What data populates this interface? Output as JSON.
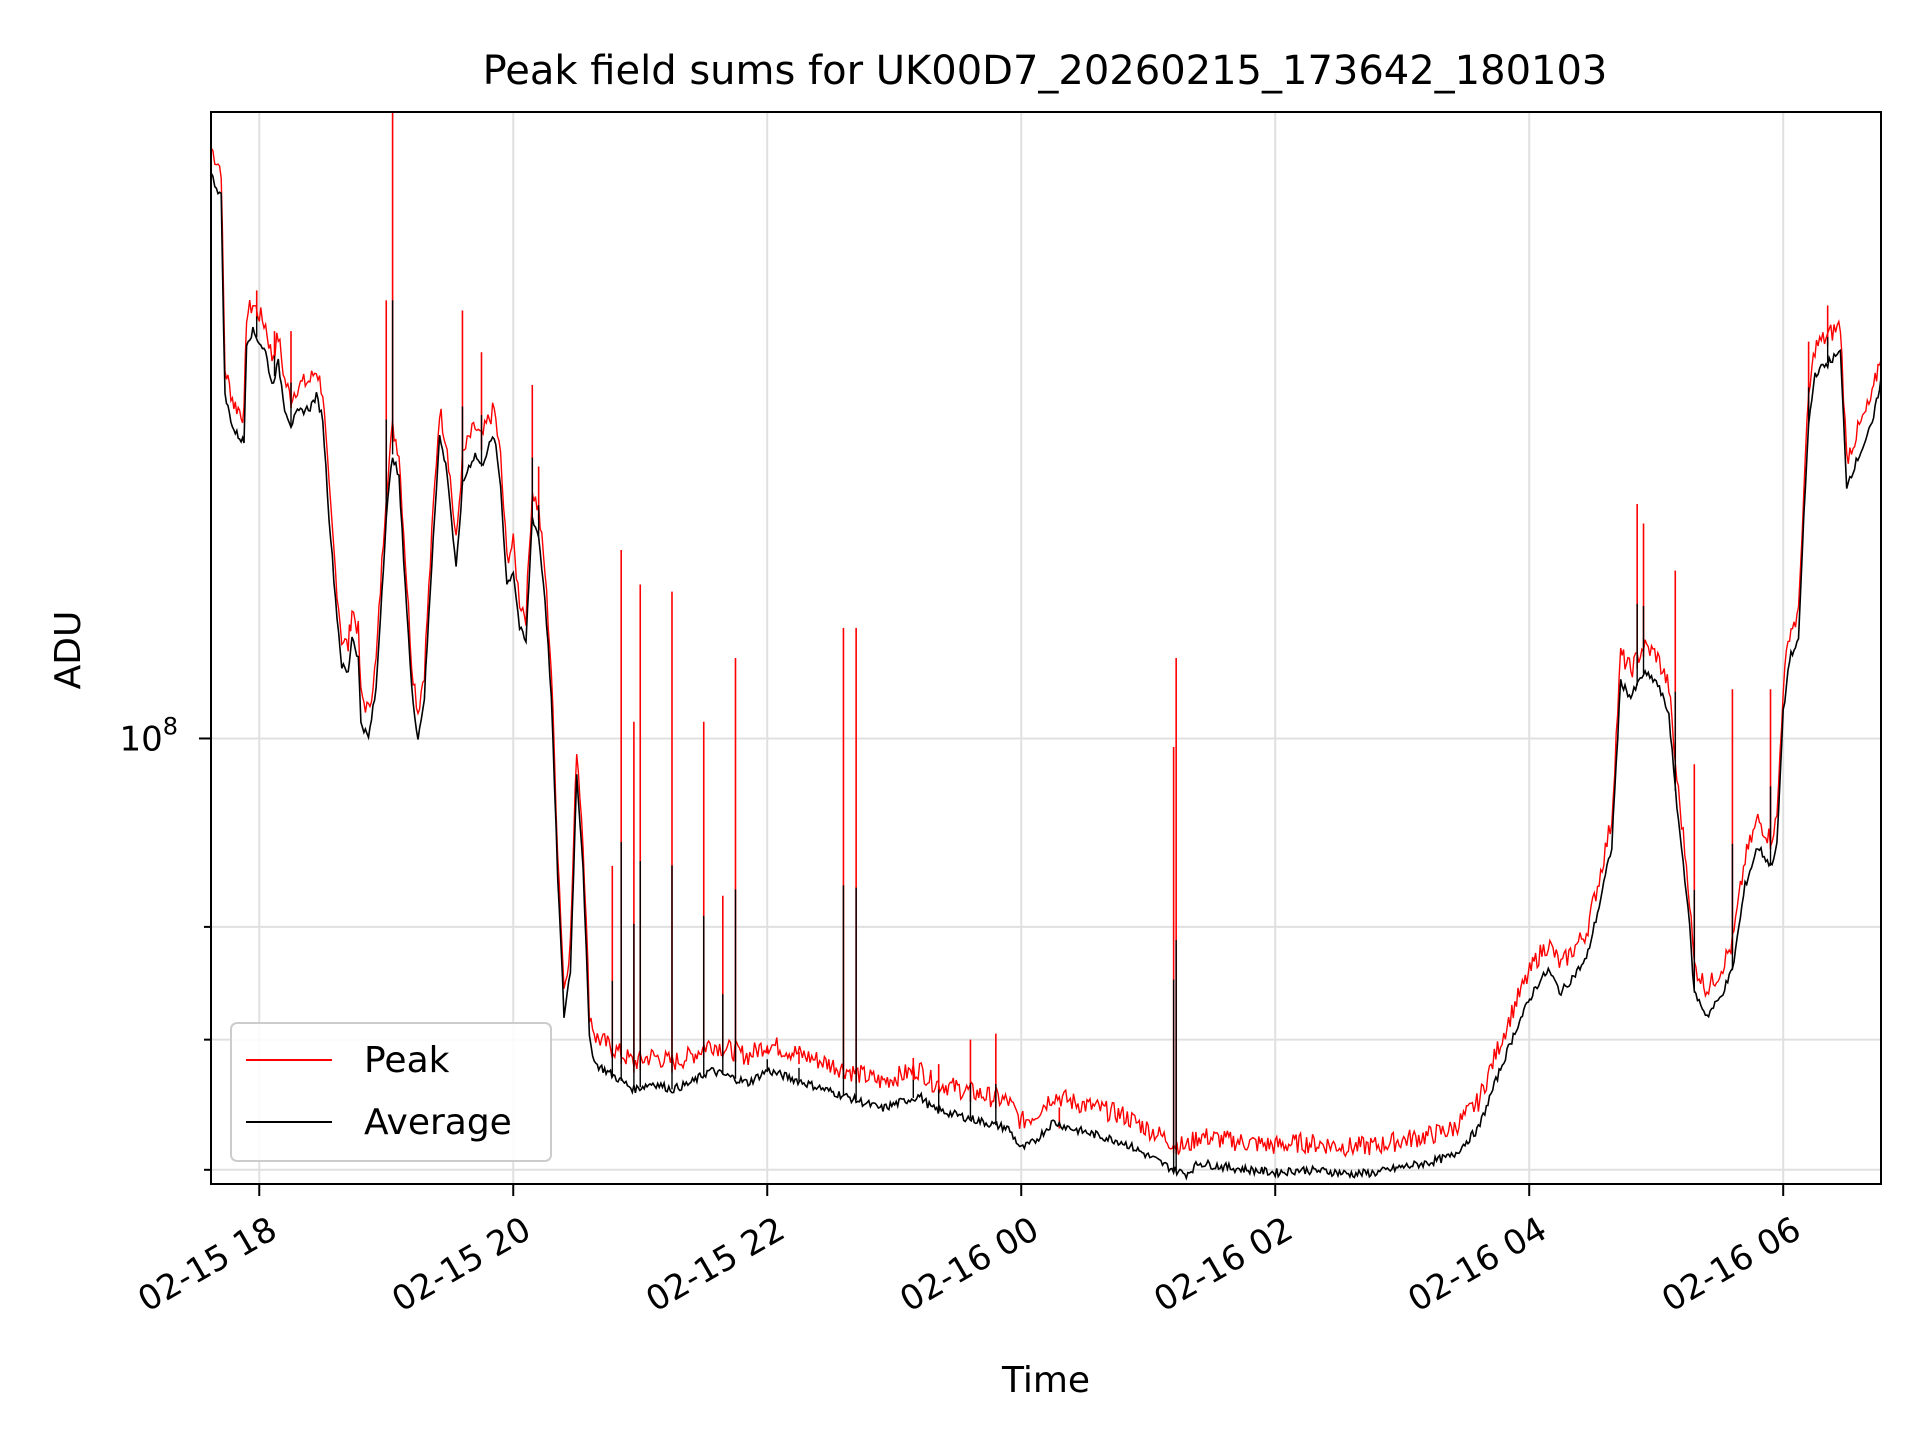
{
  "chart_data": {
    "type": "line",
    "title": "Peak field sums for UK00D7_20260215_173642_180103",
    "xlabel": "Time",
    "ylabel": "ADU",
    "yscale": "log",
    "ytick_label": {
      "base": "10",
      "exp": "8"
    },
    "x_ticks": [
      "02-15 18",
      "02-15 20",
      "02-15 22",
      "02-16 00",
      "02-16 02",
      "02-16 04",
      "02-16 06"
    ],
    "x_tick_hours": [
      18,
      20,
      22,
      24,
      26,
      28,
      30
    ],
    "xlim_hours": [
      17.62,
      30.77
    ],
    "ylim": [
      59000000,
      210000000
    ],
    "minor_y_ticks": [
      60000000,
      70000000,
      80000000
    ],
    "grid": true,
    "legend_position": "lower-left",
    "colors": {
      "peak": "#ff0000",
      "average": "#000000"
    },
    "series": [
      {
        "name": "Average",
        "key": "average",
        "points": [
          [
            17.62,
            195000000.0
          ],
          [
            17.65,
            193000000.0
          ],
          [
            17.7,
            190000000.0
          ],
          [
            17.73,
            150000000.0
          ],
          [
            17.8,
            144000000.0
          ],
          [
            17.88,
            142000000.0
          ],
          [
            17.9,
            160000000.0
          ],
          [
            17.95,
            162000000.0
          ],
          [
            18.0,
            160000000.0
          ],
          [
            18.05,
            158000000.0
          ],
          [
            18.1,
            152000000.0
          ],
          [
            18.15,
            156000000.0
          ],
          [
            18.2,
            148000000.0
          ],
          [
            18.25,
            145000000.0
          ],
          [
            18.3,
            147000000.0
          ],
          [
            18.4,
            148000000.0
          ],
          [
            18.45,
            150000000.0
          ],
          [
            18.5,
            146000000.0
          ],
          [
            18.55,
            130000000.0
          ],
          [
            18.6,
            118000000.0
          ],
          [
            18.65,
            109000000.0
          ],
          [
            18.7,
            108000000.0
          ],
          [
            18.73,
            113000000.0
          ],
          [
            18.78,
            110000000.0
          ],
          [
            18.8,
            102000000.0
          ],
          [
            18.86,
            100000000.0
          ],
          [
            18.92,
            106000000.0
          ],
          [
            19.0,
            130000000.0
          ],
          [
            19.05,
            140000000.0
          ],
          [
            19.1,
            136000000.0
          ],
          [
            19.15,
            120000000.0
          ],
          [
            19.2,
            106000000.0
          ],
          [
            19.25,
            100000000.0
          ],
          [
            19.3,
            105000000.0
          ],
          [
            19.37,
            127000000.0
          ],
          [
            19.42,
            143000000.0
          ],
          [
            19.48,
            137000000.0
          ],
          [
            19.55,
            122000000.0
          ],
          [
            19.6,
            135000000.0
          ],
          [
            19.65,
            138000000.0
          ],
          [
            19.7,
            140000000.0
          ],
          [
            19.75,
            138000000.0
          ],
          [
            19.8,
            141000000.0
          ],
          [
            19.85,
            143000000.0
          ],
          [
            19.9,
            135000000.0
          ],
          [
            19.95,
            120000000.0
          ],
          [
            20.0,
            122000000.0
          ],
          [
            20.05,
            114000000.0
          ],
          [
            20.1,
            112000000.0
          ],
          [
            20.15,
            130000000.0
          ],
          [
            20.2,
            127000000.0
          ],
          [
            20.25,
            118000000.0
          ],
          [
            20.3,
            105000000.0
          ],
          [
            20.35,
            85000000.0
          ],
          [
            20.4,
            72000000.0
          ],
          [
            20.45,
            76000000.0
          ],
          [
            20.5,
            96000000.0
          ],
          [
            20.55,
            86000000.0
          ],
          [
            20.6,
            70000000.0
          ],
          [
            20.65,
            68000000.0
          ],
          [
            20.8,
            67000000.0
          ],
          [
            20.95,
            66000000.0
          ],
          [
            21.1,
            66500000.0
          ],
          [
            21.25,
            66000000.0
          ],
          [
            21.4,
            66500000.0
          ],
          [
            21.55,
            67500000.0
          ],
          [
            21.7,
            67000000.0
          ],
          [
            21.85,
            66500000.0
          ],
          [
            22.0,
            67500000.0
          ],
          [
            22.15,
            67000000.0
          ],
          [
            22.3,
            66500000.0
          ],
          [
            22.45,
            66000000.0
          ],
          [
            22.6,
            65500000.0
          ],
          [
            22.75,
            65000000.0
          ],
          [
            22.9,
            64500000.0
          ],
          [
            23.05,
            65000000.0
          ],
          [
            23.2,
            65500000.0
          ],
          [
            23.3,
            64500000.0
          ],
          [
            23.5,
            64000000.0
          ],
          [
            23.7,
            63500000.0
          ],
          [
            23.9,
            63000000.0
          ],
          [
            24.0,
            61500000.0
          ],
          [
            24.1,
            62000000.0
          ],
          [
            24.25,
            63500000.0
          ],
          [
            24.4,
            63000000.0
          ],
          [
            24.6,
            62500000.0
          ],
          [
            24.8,
            62000000.0
          ],
          [
            25.0,
            61000000.0
          ],
          [
            25.1,
            60500000.0
          ],
          [
            25.2,
            60000000.0
          ],
          [
            25.3,
            59700000.0
          ],
          [
            25.4,
            60500000.0
          ],
          [
            25.6,
            60200000.0
          ],
          [
            25.8,
            60000000.0
          ],
          [
            26.0,
            59800000.0
          ],
          [
            26.2,
            60000000.0
          ],
          [
            26.4,
            59900000.0
          ],
          [
            26.6,
            59700000.0
          ],
          [
            26.8,
            59800000.0
          ],
          [
            27.0,
            60200000.0
          ],
          [
            27.2,
            60500000.0
          ],
          [
            27.4,
            61000000.0
          ],
          [
            27.6,
            63000000.0
          ],
          [
            27.75,
            67000000.0
          ],
          [
            27.9,
            71000000.0
          ],
          [
            28.05,
            74500000.0
          ],
          [
            28.15,
            76000000.0
          ],
          [
            28.25,
            74000000.0
          ],
          [
            28.35,
            75500000.0
          ],
          [
            28.45,
            77000000.0
          ],
          [
            28.55,
            82000000.0
          ],
          [
            28.65,
            88000000.0
          ],
          [
            28.72,
            107000000.0
          ],
          [
            28.8,
            105000000.0
          ],
          [
            28.9,
            108000000.0
          ],
          [
            29.0,
            107000000.0
          ],
          [
            29.1,
            103000000.0
          ],
          [
            29.15,
            94000000.0
          ],
          [
            29.25,
            82000000.0
          ],
          [
            29.3,
            74000000.0
          ],
          [
            29.4,
            72000000.0
          ],
          [
            29.5,
            73500000.0
          ],
          [
            29.6,
            76000000.0
          ],
          [
            29.7,
            84000000.0
          ],
          [
            29.8,
            88000000.0
          ],
          [
            29.9,
            86000000.0
          ],
          [
            29.95,
            88000000.0
          ],
          [
            30.0,
            103000000.0
          ],
          [
            30.05,
            110000000.0
          ],
          [
            30.12,
            112000000.0
          ],
          [
            30.15,
            125000000.0
          ],
          [
            30.2,
            145000000.0
          ],
          [
            30.25,
            154000000.0
          ],
          [
            30.3,
            155000000.0
          ],
          [
            30.35,
            156000000.0
          ],
          [
            30.45,
            158000000.0
          ],
          [
            30.5,
            135000000.0
          ],
          [
            30.6,
            140000000.0
          ],
          [
            30.7,
            145000000.0
          ],
          [
            30.77,
            153000000.0
          ]
        ]
      },
      {
        "name": "Peak",
        "key": "peak",
        "spikes": [
          [
            17.98,
            170000000.0
          ],
          [
            18.12,
            162000000.0
          ],
          [
            18.25,
            162000000.0
          ],
          [
            19.0,
            168000000.0
          ],
          [
            19.05,
            210000000.0
          ],
          [
            19.6,
            166000000.0
          ],
          [
            19.75,
            158000000.0
          ],
          [
            20.15,
            152000000.0
          ],
          [
            20.2,
            138000000.0
          ],
          [
            20.78,
            86000000.0
          ],
          [
            20.85,
            125000000.0
          ],
          [
            20.95,
            102000000.0
          ],
          [
            21.0,
            120000000.0
          ],
          [
            21.25,
            119000000.0
          ],
          [
            21.5,
            102000000.0
          ],
          [
            21.65,
            83000000.0
          ],
          [
            21.75,
            110000000.0
          ],
          [
            22.0,
            69500000.0
          ],
          [
            22.25,
            69000000.0
          ],
          [
            22.6,
            114000000.0
          ],
          [
            22.7,
            114000000.0
          ],
          [
            23.15,
            68500000.0
          ],
          [
            23.35,
            68000000.0
          ],
          [
            23.6,
            70000000.0
          ],
          [
            23.8,
            70500000.0
          ],
          [
            24.3,
            63000000.0
          ],
          [
            25.2,
            99000000.0
          ],
          [
            25.22,
            110000000.0
          ],
          [
            28.85,
            132000000.0
          ],
          [
            28.9,
            129000000.0
          ],
          [
            29.15,
            122000000.0
          ],
          [
            29.3,
            97000000.0
          ],
          [
            29.6,
            106000000.0
          ],
          [
            29.9,
            106000000.0
          ],
          [
            30.2,
            160000000.0
          ],
          [
            30.35,
            167000000.0
          ]
        ],
        "offset_factor": 1.02
      }
    ]
  },
  "legend": {
    "peak_label": "Peak",
    "average_label": "Average"
  }
}
